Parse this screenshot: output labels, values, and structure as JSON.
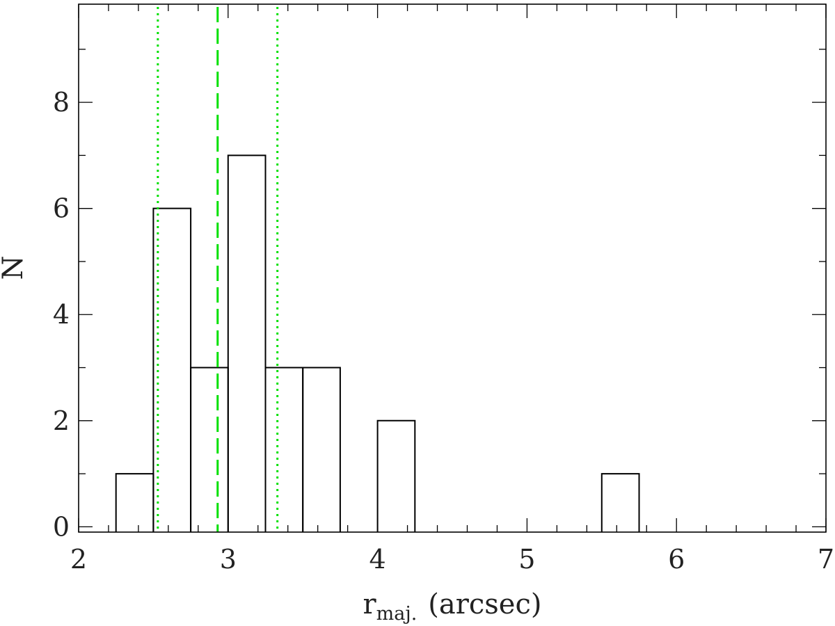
{
  "chart_data": {
    "type": "bar",
    "histogram": true,
    "bin_width": 0.25,
    "bins": [
      {
        "x0": 2.25,
        "x1": 2.5,
        "value": 1
      },
      {
        "x0": 2.5,
        "x1": 2.75,
        "value": 6
      },
      {
        "x0": 2.75,
        "x1": 3.0,
        "value": 3
      },
      {
        "x0": 3.0,
        "x1": 3.25,
        "value": 7
      },
      {
        "x0": 3.25,
        "x1": 3.5,
        "value": 3
      },
      {
        "x0": 3.5,
        "x1": 3.75,
        "value": 3
      },
      {
        "x0": 4.0,
        "x1": 4.25,
        "value": 2
      },
      {
        "x0": 5.5,
        "x1": 5.75,
        "value": 1
      }
    ],
    "title": "",
    "xlabel_main": "r",
    "xlabel_sub": "maj.",
    "xlabel_units": "(arcsec)",
    "ylabel": "N",
    "xlim": [
      2,
      7
    ],
    "ylim": [
      -0.1,
      9.85
    ],
    "x_major_ticks": [
      2,
      3,
      4,
      5,
      6,
      7
    ],
    "x_tick_labels": [
      "2",
      "3",
      "4",
      "5",
      "6",
      "7"
    ],
    "x_minor_step": 0.2,
    "y_major_ticks": [
      0,
      2,
      4,
      6,
      8
    ],
    "y_tick_labels": [
      "0",
      "2",
      "4",
      "6",
      "8"
    ],
    "y_minor_step": 1,
    "grid": false,
    "reference_lines": [
      {
        "name": "median",
        "x": 2.93,
        "style": "dashed",
        "color": "#00e000"
      },
      {
        "name": "lower quartile",
        "x": 2.53,
        "style": "dotted",
        "color": "#00e000"
      },
      {
        "name": "upper quartile",
        "x": 3.33,
        "style": "dotted",
        "color": "#00e000"
      }
    ]
  }
}
